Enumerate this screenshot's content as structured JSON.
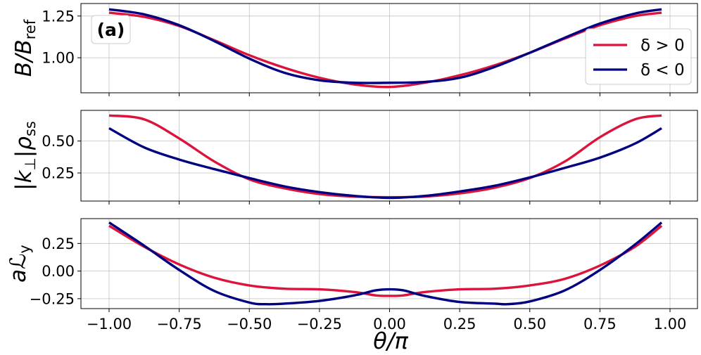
{
  "figure": {
    "panel_tag": "(a)",
    "xlabel": "θ/π",
    "legend": [
      {
        "label": "δ > 0",
        "color": "#dc143c"
      },
      {
        "label": "δ < 0",
        "color": "#000080"
      }
    ]
  },
  "chart_data": [
    {
      "type": "line",
      "ylabel": "B/B_ref",
      "xlim": [
        -1.0,
        1.0
      ],
      "ylim": [
        0.79,
        1.325
      ],
      "yticks": [
        1.0,
        1.25
      ],
      "ytick_labels": [
        "1.00",
        "1.25"
      ],
      "grid": true,
      "legend_position": "right",
      "series": [
        {
          "name": "δ > 0",
          "color": "#dc143c",
          "x": [
            -1.0,
            -0.875,
            -0.75,
            -0.625,
            -0.5,
            -0.375,
            -0.25,
            -0.125,
            0.0,
            0.125,
            0.25,
            0.375,
            0.5,
            0.625,
            0.75,
            0.875,
            0.97
          ],
          "y": [
            1.27,
            1.245,
            1.19,
            1.105,
            1.015,
            0.94,
            0.88,
            0.84,
            0.825,
            0.85,
            0.895,
            0.955,
            1.03,
            1.115,
            1.195,
            1.25,
            1.27
          ]
        },
        {
          "name": "δ < 0",
          "color": "#000080",
          "x": [
            -1.0,
            -0.875,
            -0.75,
            -0.625,
            -0.5,
            -0.375,
            -0.25,
            -0.125,
            0.0,
            0.125,
            0.25,
            0.375,
            0.5,
            0.625,
            0.75,
            0.875,
            0.97
          ],
          "y": [
            1.29,
            1.26,
            1.195,
            1.1,
            0.995,
            0.91,
            0.865,
            0.85,
            0.85,
            0.855,
            0.88,
            0.945,
            1.03,
            1.12,
            1.205,
            1.265,
            1.29
          ]
        }
      ]
    },
    {
      "type": "line",
      "ylabel": "|k_⊥|ρ_ss",
      "xlim": [
        -1.0,
        1.0
      ],
      "ylim": [
        0.03,
        0.74
      ],
      "yticks": [
        0.25,
        0.5
      ],
      "ytick_labels": [
        "0.25",
        "0.50"
      ],
      "grid": true,
      "series": [
        {
          "name": "δ > 0",
          "color": "#dc143c",
          "x": [
            -1.0,
            -0.875,
            -0.75,
            -0.625,
            -0.5,
            -0.375,
            -0.25,
            -0.125,
            0.0,
            0.125,
            0.25,
            0.375,
            0.5,
            0.625,
            0.75,
            0.875,
            0.97
          ],
          "y": [
            0.7,
            0.67,
            0.52,
            0.34,
            0.2,
            0.13,
            0.085,
            0.065,
            0.06,
            0.065,
            0.09,
            0.135,
            0.21,
            0.34,
            0.53,
            0.67,
            0.7
          ]
        },
        {
          "name": "δ < 0",
          "color": "#000080",
          "x": [
            -1.0,
            -0.875,
            -0.75,
            -0.625,
            -0.5,
            -0.375,
            -0.25,
            -0.125,
            0.0,
            0.125,
            0.25,
            0.375,
            0.5,
            0.625,
            0.75,
            0.875,
            0.97
          ],
          "y": [
            0.6,
            0.45,
            0.355,
            0.28,
            0.21,
            0.145,
            0.1,
            0.07,
            0.055,
            0.07,
            0.105,
            0.15,
            0.215,
            0.29,
            0.37,
            0.48,
            0.6
          ]
        }
      ]
    },
    {
      "type": "line",
      "ylabel": "aℒ_y",
      "xlim": [
        -1.0,
        1.0
      ],
      "ylim": [
        -0.34,
        0.475
      ],
      "yticks": [
        -0.25,
        0.0,
        0.25
      ],
      "ytick_labels": [
        "−0.25",
        "0.00",
        "0.25"
      ],
      "xticks": [
        -1.0,
        -0.75,
        -0.5,
        -0.25,
        0.0,
        0.25,
        0.5,
        0.75,
        1.0
      ],
      "xtick_labels": [
        "−1.00",
        "−0.75",
        "−0.50",
        "−0.25",
        "0.00",
        "0.25",
        "0.50",
        "0.75",
        "1.00"
      ],
      "grid": true,
      "series": [
        {
          "name": "δ > 0",
          "color": "#dc143c",
          "x": [
            -1.0,
            -0.875,
            -0.75,
            -0.625,
            -0.5,
            -0.375,
            -0.25,
            -0.125,
            -0.05,
            0.0,
            0.05,
            0.125,
            0.25,
            0.375,
            0.5,
            0.625,
            0.75,
            0.875,
            0.97
          ],
          "y": [
            0.41,
            0.22,
            0.06,
            -0.06,
            -0.13,
            -0.16,
            -0.165,
            -0.19,
            -0.22,
            -0.225,
            -0.22,
            -0.19,
            -0.165,
            -0.16,
            -0.13,
            -0.07,
            0.05,
            0.22,
            0.41
          ]
        },
        {
          "name": "δ < 0",
          "color": "#000080",
          "x": [
            -1.0,
            -0.875,
            -0.75,
            -0.625,
            -0.5,
            -0.44,
            -0.375,
            -0.25,
            -0.125,
            -0.05,
            0.0,
            0.05,
            0.125,
            0.25,
            0.375,
            0.42,
            0.5,
            0.625,
            0.75,
            0.875,
            0.97
          ],
          "y": [
            0.44,
            0.23,
            0.01,
            -0.18,
            -0.285,
            -0.3,
            -0.295,
            -0.27,
            -0.22,
            -0.175,
            -0.165,
            -0.175,
            -0.225,
            -0.28,
            -0.295,
            -0.3,
            -0.275,
            -0.175,
            0.01,
            0.24,
            0.44
          ]
        }
      ]
    }
  ]
}
